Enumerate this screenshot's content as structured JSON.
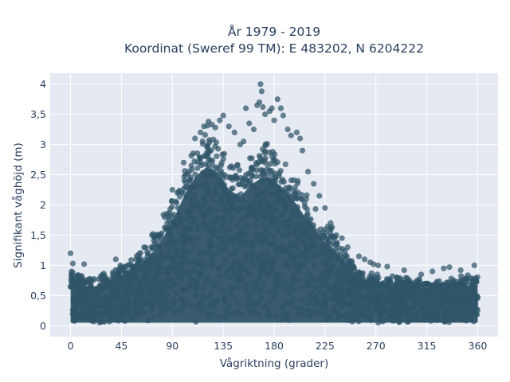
{
  "chart_data": {
    "type": "scatter",
    "title": "År 1979 - 2019",
    "subtitle": "Koordinat (Sweref 99 TM): E 483202, N 6204222",
    "xlabel": "Vågriktning (grader)",
    "ylabel": "Signifikant våghöjd (m)",
    "xlim": [
      -18,
      378
    ],
    "ylim": [
      -0.18,
      4.18
    ],
    "x_ticks": [
      0,
      45,
      90,
      135,
      180,
      225,
      270,
      315,
      360
    ],
    "x_tick_labels": [
      "0",
      "45",
      "90",
      "135",
      "180",
      "225",
      "270",
      "315",
      "360"
    ],
    "y_ticks": [
      0,
      0.5,
      1,
      1.5,
      2,
      2.5,
      3,
      3.5,
      4
    ],
    "y_tick_labels": [
      "0",
      "0,5",
      "1",
      "1,5",
      "2",
      "2,5",
      "3",
      "3,5",
      "4"
    ],
    "grid": true,
    "background_color": "#e5e9f2",
    "marker_color": "#2f5468",
    "envelope": [
      {
        "x": 0,
        "y": 1.0
      },
      {
        "x": 10,
        "y": 0.8
      },
      {
        "x": 20,
        "y": 0.78
      },
      {
        "x": 30,
        "y": 0.85
      },
      {
        "x": 40,
        "y": 0.95
      },
      {
        "x": 50,
        "y": 1.05
      },
      {
        "x": 60,
        "y": 1.2
      },
      {
        "x": 70,
        "y": 1.4
      },
      {
        "x": 80,
        "y": 1.7
      },
      {
        "x": 90,
        "y": 2.1
      },
      {
        "x": 100,
        "y": 2.6
      },
      {
        "x": 110,
        "y": 3.0
      },
      {
        "x": 120,
        "y": 3.2
      },
      {
        "x": 130,
        "y": 3.1
      },
      {
        "x": 140,
        "y": 2.75
      },
      {
        "x": 150,
        "y": 2.6
      },
      {
        "x": 160,
        "y": 2.85
      },
      {
        "x": 170,
        "y": 3.0
      },
      {
        "x": 180,
        "y": 2.95
      },
      {
        "x": 190,
        "y": 2.7
      },
      {
        "x": 200,
        "y": 2.45
      },
      {
        "x": 210,
        "y": 2.1
      },
      {
        "x": 220,
        "y": 1.8
      },
      {
        "x": 230,
        "y": 1.6
      },
      {
        "x": 240,
        "y": 1.35
      },
      {
        "x": 250,
        "y": 1.05
      },
      {
        "x": 260,
        "y": 0.9
      },
      {
        "x": 270,
        "y": 0.85
      },
      {
        "x": 280,
        "y": 0.82
      },
      {
        "x": 290,
        "y": 0.8
      },
      {
        "x": 300,
        "y": 0.78
      },
      {
        "x": 310,
        "y": 0.76
      },
      {
        "x": 320,
        "y": 0.75
      },
      {
        "x": 330,
        "y": 0.76
      },
      {
        "x": 340,
        "y": 0.78
      },
      {
        "x": 350,
        "y": 0.8
      },
      {
        "x": 360,
        "y": 0.82
      }
    ],
    "outliers": [
      {
        "x": 0,
        "y": 1.2
      },
      {
        "x": 2,
        "y": 1.03
      },
      {
        "x": 12,
        "y": 1.02
      },
      {
        "x": 40,
        "y": 1.1
      },
      {
        "x": 65,
        "y": 1.3
      },
      {
        "x": 72,
        "y": 1.5
      },
      {
        "x": 90,
        "y": 2.25
      },
      {
        "x": 100,
        "y": 2.7
      },
      {
        "x": 110,
        "y": 3.1
      },
      {
        "x": 115,
        "y": 3.2
      },
      {
        "x": 118,
        "y": 3.3
      },
      {
        "x": 122,
        "y": 3.38
      },
      {
        "x": 125,
        "y": 3.33
      },
      {
        "x": 128,
        "y": 3.28
      },
      {
        "x": 132,
        "y": 3.4
      },
      {
        "x": 135,
        "y": 3.48
      },
      {
        "x": 140,
        "y": 3.3
      },
      {
        "x": 145,
        "y": 3.2
      },
      {
        "x": 150,
        "y": 3.0
      },
      {
        "x": 153,
        "y": 3.05
      },
      {
        "x": 155,
        "y": 3.6
      },
      {
        "x": 158,
        "y": 3.35
      },
      {
        "x": 162,
        "y": 3.25
      },
      {
        "x": 165,
        "y": 3.65
      },
      {
        "x": 167,
        "y": 3.7
      },
      {
        "x": 168,
        "y": 4.0
      },
      {
        "x": 169,
        "y": 3.88
      },
      {
        "x": 170,
        "y": 3.62
      },
      {
        "x": 172,
        "y": 3.5
      },
      {
        "x": 176,
        "y": 3.55
      },
      {
        "x": 178,
        "y": 3.6
      },
      {
        "x": 180,
        "y": 3.4
      },
      {
        "x": 183,
        "y": 3.75
      },
      {
        "x": 186,
        "y": 3.6
      },
      {
        "x": 188,
        "y": 3.48
      },
      {
        "x": 192,
        "y": 3.25
      },
      {
        "x": 195,
        "y": 3.15
      },
      {
        "x": 200,
        "y": 3.2
      },
      {
        "x": 203,
        "y": 3.1
      },
      {
        "x": 205,
        "y": 2.9
      },
      {
        "x": 210,
        "y": 2.55
      },
      {
        "x": 215,
        "y": 2.35
      },
      {
        "x": 220,
        "y": 2.15
      },
      {
        "x": 225,
        "y": 1.95
      },
      {
        "x": 230,
        "y": 1.7
      },
      {
        "x": 235,
        "y": 1.5
      },
      {
        "x": 240,
        "y": 1.45
      },
      {
        "x": 245,
        "y": 1.3
      },
      {
        "x": 255,
        "y": 1.15
      },
      {
        "x": 260,
        "y": 1.1
      },
      {
        "x": 265,
        "y": 1.05
      },
      {
        "x": 268,
        "y": 1.02
      },
      {
        "x": 272,
        "y": 1.0
      },
      {
        "x": 280,
        "y": 0.98
      },
      {
        "x": 295,
        "y": 0.92
      },
      {
        "x": 310,
        "y": 0.85
      },
      {
        "x": 320,
        "y": 0.9
      },
      {
        "x": 330,
        "y": 0.95
      },
      {
        "x": 335,
        "y": 0.97
      },
      {
        "x": 345,
        "y": 0.92
      },
      {
        "x": 357,
        "y": 1.0
      }
    ]
  }
}
